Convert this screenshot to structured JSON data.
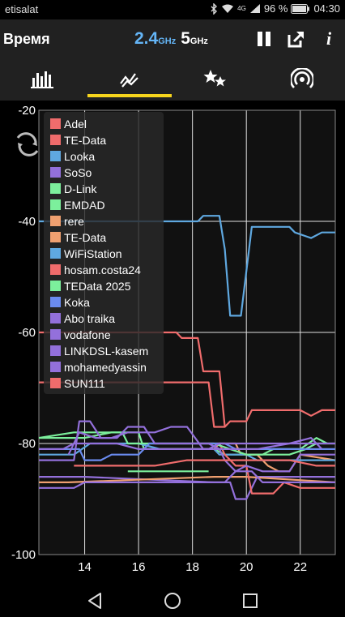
{
  "statusbar": {
    "carrier": "etisalat",
    "network": "4G",
    "battery": "96 %",
    "time": "04:30"
  },
  "header": {
    "title": "Время",
    "band_24": "2.4",
    "band_24_unit": "GHz",
    "band_5": "5",
    "band_5_unit": "GHz",
    "info": "i"
  },
  "tabs": [
    {
      "icon": "bar-chart-icon",
      "active": false
    },
    {
      "icon": "time-graph-icon",
      "active": true
    },
    {
      "icon": "stars-rating-icon",
      "active": false
    },
    {
      "icon": "signal-broadcast-icon",
      "active": false
    }
  ],
  "colors": {
    "accent": "#f7d51d",
    "appbar": "#212121",
    "band24": "#64b5f6"
  },
  "chart_data": {
    "type": "line",
    "xlabel": "",
    "ylabel": "",
    "xlim": [
      12.3,
      23.3
    ],
    "ylim": [
      -100,
      -20
    ],
    "xticks": [
      "14",
      "16",
      "18",
      "20",
      "22"
    ],
    "yticks": [
      "-20",
      "-40",
      "-60",
      "-80",
      "-100"
    ],
    "grid": true,
    "legend_position": "top-left",
    "series": [
      {
        "name": "Adel",
        "color": "#f06c6c",
        "points": [
          [
            12.3,
            -60
          ],
          [
            13.2,
            -60
          ],
          [
            17.4,
            -60
          ],
          [
            17.6,
            -61
          ],
          [
            17.8,
            -61
          ],
          [
            18.0,
            -61
          ],
          [
            18.2,
            -61
          ],
          [
            18.4,
            -67
          ],
          [
            18.6,
            -67
          ],
          [
            19.0,
            -67
          ],
          [
            19.2,
            -77
          ]
        ]
      },
      {
        "name": "TE-Data",
        "color": "#f06c6c",
        "points": [
          [
            12.3,
            -69
          ],
          [
            13.6,
            -69
          ],
          [
            13.8,
            -69
          ],
          [
            14.0,
            -69
          ],
          [
            17.4,
            -69
          ],
          [
            17.6,
            -69
          ],
          [
            18.6,
            -69
          ],
          [
            18.8,
            -77
          ],
          [
            19.2,
            -77
          ],
          [
            19.4,
            -76
          ],
          [
            20.0,
            -76
          ],
          [
            20.2,
            -74
          ],
          [
            21.8,
            -74
          ],
          [
            22.0,
            -74
          ],
          [
            22.4,
            -75
          ],
          [
            22.8,
            -74
          ],
          [
            23.3,
            -74
          ]
        ]
      },
      {
        "name": "Looka",
        "color": "#5fa8e0",
        "points": [
          [
            12.3,
            -40
          ],
          [
            18.2,
            -40
          ],
          [
            18.4,
            -39
          ],
          [
            19.0,
            -39
          ],
          [
            19.2,
            -45
          ],
          [
            19.4,
            -57
          ],
          [
            19.6,
            -57
          ],
          [
            19.8,
            -57
          ],
          [
            20.2,
            -41
          ],
          [
            21.6,
            -41
          ],
          [
            21.8,
            -42
          ],
          [
            22.4,
            -43
          ],
          [
            22.8,
            -42
          ],
          [
            23.3,
            -42
          ]
        ]
      },
      {
        "name": "SoSo",
        "color": "#9370db",
        "points": [
          [
            12.3,
            -86
          ],
          [
            13.5,
            -86
          ],
          [
            14.0,
            -86
          ],
          [
            18.8,
            -87
          ],
          [
            19.4,
            -87
          ],
          [
            19.6,
            -90
          ],
          [
            20.0,
            -90
          ],
          [
            20.4,
            -86
          ],
          [
            23.3,
            -86
          ]
        ]
      },
      {
        "name": "D-Link",
        "color": "#7cf09c",
        "points": [
          [
            12.3,
            -79
          ],
          [
            14.0,
            -79
          ],
          [
            15.0,
            -78
          ],
          [
            16.0,
            -78
          ],
          [
            16.2,
            -81
          ],
          [
            18.8,
            -81
          ],
          [
            19.2,
            -82
          ],
          [
            20.4,
            -82
          ],
          [
            21.6,
            -82
          ],
          [
            22.2,
            -81
          ],
          [
            22.6,
            -80
          ],
          [
            23.3,
            -80
          ]
        ]
      },
      {
        "name": "EMDAD",
        "color": "#7cf09c",
        "points": [
          [
            15.6,
            -85
          ],
          [
            16.0,
            -85
          ],
          [
            16.4,
            -85
          ],
          [
            18.6,
            -85
          ]
        ]
      },
      {
        "name": "rere",
        "color": "#f0a070",
        "points": [
          [
            16.8,
            -81
          ],
          [
            18.8,
            -81
          ],
          [
            19.0,
            -80
          ],
          [
            19.6,
            -80
          ],
          [
            19.8,
            -82
          ],
          [
            20.4,
            -82
          ],
          [
            20.8,
            -84
          ],
          [
            21.2,
            -85
          ],
          [
            21.6,
            -85
          ],
          [
            22.0,
            -82
          ],
          [
            23.3,
            -83
          ]
        ]
      },
      {
        "name": "TE-Data",
        "color": "#f0a070",
        "points": [
          [
            12.3,
            -87
          ],
          [
            13.4,
            -87
          ],
          [
            18.8,
            -86
          ],
          [
            19.2,
            -86
          ],
          [
            19.6,
            -86
          ],
          [
            20.0,
            -86
          ],
          [
            23.3,
            -87
          ]
        ]
      },
      {
        "name": "WiFiStation",
        "color": "#5fa8e0",
        "points": [
          [
            12.3,
            -82
          ],
          [
            13.6,
            -82
          ],
          [
            14.2,
            -80
          ],
          [
            16.0,
            -80
          ],
          [
            16.8,
            -81
          ],
          [
            18.8,
            -81
          ],
          [
            19.0,
            -82
          ],
          [
            19.6,
            -82
          ],
          [
            20.0,
            -82
          ],
          [
            20.4,
            -83
          ],
          [
            22.4,
            -83
          ],
          [
            23.3,
            -83
          ]
        ]
      },
      {
        "name": "hosam.costa24",
        "color": "#f06c6c",
        "points": [
          [
            18.6,
            -80
          ],
          [
            19.0,
            -80
          ],
          [
            19.2,
            -82
          ],
          [
            19.6,
            -84
          ],
          [
            20.0,
            -84
          ],
          [
            20.2,
            -89
          ],
          [
            21.0,
            -89
          ],
          [
            21.4,
            -87
          ],
          [
            22.0,
            -88
          ],
          [
            22.4,
            -88
          ],
          [
            23.3,
            -88
          ]
        ]
      },
      {
        "name": "TEData 2025",
        "color": "#7cf09c",
        "points": [
          [
            12.3,
            -79
          ],
          [
            13.6,
            -78
          ],
          [
            14.6,
            -78
          ],
          [
            15.4,
            -78
          ],
          [
            15.6,
            -80
          ],
          [
            16.4,
            -80
          ],
          [
            17.0,
            -80
          ],
          [
            17.6,
            -80
          ],
          [
            18.8,
            -80
          ],
          [
            19.4,
            -81
          ],
          [
            20.0,
            -82
          ],
          [
            20.6,
            -82
          ],
          [
            21.0,
            -81
          ],
          [
            22.0,
            -81
          ],
          [
            22.6,
            -79
          ],
          [
            23.0,
            -80
          ]
        ]
      },
      {
        "name": "Koka",
        "color": "#6a8bef",
        "points": [
          [
            12.3,
            -81
          ],
          [
            13.8,
            -81
          ],
          [
            14.0,
            -83
          ],
          [
            14.6,
            -83
          ],
          [
            15.0,
            -82
          ],
          [
            16.0,
            -82
          ],
          [
            16.4,
            -80
          ],
          [
            17.0,
            -80
          ],
          [
            18.0,
            -80
          ],
          [
            18.8,
            -80
          ],
          [
            19.2,
            -80
          ],
          [
            19.6,
            -81
          ],
          [
            20.0,
            -81
          ],
          [
            23.3,
            -81
          ]
        ]
      },
      {
        "name": "Abo traika",
        "color": "#9370db",
        "points": [
          [
            12.3,
            -83
          ],
          [
            13.6,
            -83
          ],
          [
            13.8,
            -76
          ],
          [
            14.2,
            -76
          ],
          [
            14.6,
            -79
          ],
          [
            15.2,
            -79
          ],
          [
            15.6,
            -77
          ],
          [
            16.2,
            -77
          ],
          [
            16.6,
            -80
          ],
          [
            17.2,
            -80
          ],
          [
            18.0,
            -80
          ],
          [
            18.6,
            -80
          ],
          [
            19.0,
            -81
          ],
          [
            19.2,
            -83
          ],
          [
            19.6,
            -85
          ],
          [
            20.0,
            -84
          ],
          [
            20.6,
            -85
          ],
          [
            21.6,
            -85
          ],
          [
            22.0,
            -82
          ],
          [
            22.6,
            -82
          ],
          [
            23.3,
            -82
          ]
        ]
      },
      {
        "name": "vodafone",
        "color": "#9370db",
        "points": [
          [
            12.3,
            -88
          ],
          [
            13.6,
            -88
          ],
          [
            14.0,
            -87
          ],
          [
            16.0,
            -87
          ],
          [
            16.6,
            -87
          ],
          [
            18.6,
            -87
          ],
          [
            19.2,
            -87
          ],
          [
            19.6,
            -85
          ],
          [
            20.2,
            -85
          ],
          [
            20.6,
            -87
          ],
          [
            22.8,
            -87
          ],
          [
            23.3,
            -87
          ]
        ]
      },
      {
        "name": "LINKDSL-kasem",
        "color": "#9370db",
        "points": [
          [
            12.3,
            -81
          ],
          [
            13.2,
            -81
          ],
          [
            13.6,
            -80
          ],
          [
            14.6,
            -80
          ],
          [
            15.2,
            -80
          ],
          [
            16.0,
            -81
          ],
          [
            16.6,
            -81
          ],
          [
            17.8,
            -81
          ],
          [
            18.6,
            -81
          ],
          [
            19.0,
            -80
          ],
          [
            19.6,
            -80
          ],
          [
            20.0,
            -80
          ],
          [
            23.3,
            -80
          ]
        ]
      },
      {
        "name": "mohamedyassin",
        "color": "#9370db",
        "points": [
          [
            13.4,
            -82
          ],
          [
            13.8,
            -78
          ],
          [
            14.4,
            -79
          ],
          [
            15.0,
            -79
          ],
          [
            15.6,
            -78
          ],
          [
            16.2,
            -78
          ],
          [
            16.6,
            -78
          ],
          [
            17.2,
            -77
          ],
          [
            17.8,
            -77
          ],
          [
            18.4,
            -81
          ],
          [
            19.2,
            -81
          ],
          [
            19.6,
            -81
          ],
          [
            20.4,
            -81
          ],
          [
            21.6,
            -80
          ],
          [
            22.4,
            -79
          ],
          [
            22.8,
            -81
          ]
        ]
      },
      {
        "name": "SUN111",
        "color": "#f06c6c",
        "points": [
          [
            13.6,
            -84
          ],
          [
            14.2,
            -84
          ],
          [
            15.6,
            -84
          ],
          [
            16.6,
            -84
          ],
          [
            17.8,
            -83
          ],
          [
            18.8,
            -83
          ],
          [
            19.4,
            -83
          ],
          [
            20.2,
            -83
          ],
          [
            21.6,
            -83
          ],
          [
            22.6,
            -84
          ],
          [
            23.3,
            -84
          ]
        ]
      }
    ]
  }
}
